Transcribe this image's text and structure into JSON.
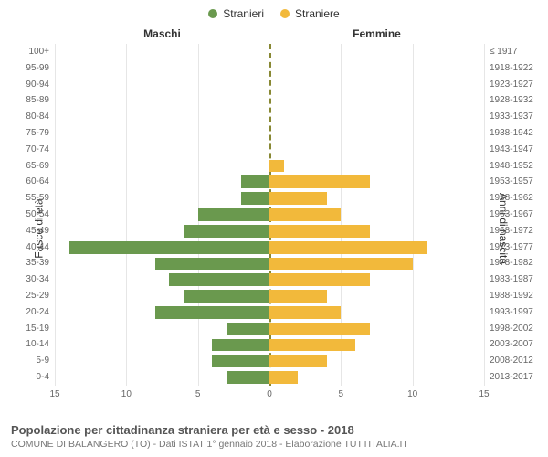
{
  "type": "population-pyramid",
  "legend": {
    "male": {
      "label": "Stranieri",
      "color": "#6a994e"
    },
    "female": {
      "label": "Straniere",
      "color": "#f2b93b"
    }
  },
  "headers": {
    "left": "Maschi",
    "right": "Femmine"
  },
  "axis_titles": {
    "left": "Fasce di età",
    "right": "Anni di nascita"
  },
  "caption": {
    "title": "Popolazione per cittadinanza straniera per età e sesso - 2018",
    "subtitle": "COMUNE DI BALANGERO (TO) - Dati ISTAT 1° gennaio 2018 - Elaborazione TUTTITALIA.IT"
  },
  "x_axis": {
    "max": 15,
    "ticks": [
      15,
      10,
      5,
      0,
      5,
      10,
      15
    ]
  },
  "background_color": "#ffffff",
  "grid_color": "#e6e6e6",
  "zero_line_color": "#888833",
  "label_fontsize": 10,
  "header_fontsize": 12,
  "title_fontsize": 13,
  "rows": [
    {
      "age": "100+",
      "birth": "≤ 1917",
      "m": 0,
      "f": 0
    },
    {
      "age": "95-99",
      "birth": "1918-1922",
      "m": 0,
      "f": 0
    },
    {
      "age": "90-94",
      "birth": "1923-1927",
      "m": 0,
      "f": 0
    },
    {
      "age": "85-89",
      "birth": "1928-1932",
      "m": 0,
      "f": 0
    },
    {
      "age": "80-84",
      "birth": "1933-1937",
      "m": 0,
      "f": 0
    },
    {
      "age": "75-79",
      "birth": "1938-1942",
      "m": 0,
      "f": 0
    },
    {
      "age": "70-74",
      "birth": "1943-1947",
      "m": 0,
      "f": 0
    },
    {
      "age": "65-69",
      "birth": "1948-1952",
      "m": 0,
      "f": 1
    },
    {
      "age": "60-64",
      "birth": "1953-1957",
      "m": 2,
      "f": 7
    },
    {
      "age": "55-59",
      "birth": "1958-1962",
      "m": 2,
      "f": 4
    },
    {
      "age": "50-54",
      "birth": "1963-1967",
      "m": 5,
      "f": 5
    },
    {
      "age": "45-49",
      "birth": "1968-1972",
      "m": 6,
      "f": 7
    },
    {
      "age": "40-44",
      "birth": "1973-1977",
      "m": 14,
      "f": 11
    },
    {
      "age": "35-39",
      "birth": "1978-1982",
      "m": 8,
      "f": 10
    },
    {
      "age": "30-34",
      "birth": "1983-1987",
      "m": 7,
      "f": 7
    },
    {
      "age": "25-29",
      "birth": "1988-1992",
      "m": 6,
      "f": 4
    },
    {
      "age": "20-24",
      "birth": "1993-1997",
      "m": 8,
      "f": 5
    },
    {
      "age": "15-19",
      "birth": "1998-2002",
      "m": 3,
      "f": 7
    },
    {
      "age": "10-14",
      "birth": "2003-2007",
      "m": 4,
      "f": 6
    },
    {
      "age": "5-9",
      "birth": "2008-2012",
      "m": 4,
      "f": 4
    },
    {
      "age": "0-4",
      "birth": "2013-2017",
      "m": 3,
      "f": 2
    }
  ]
}
